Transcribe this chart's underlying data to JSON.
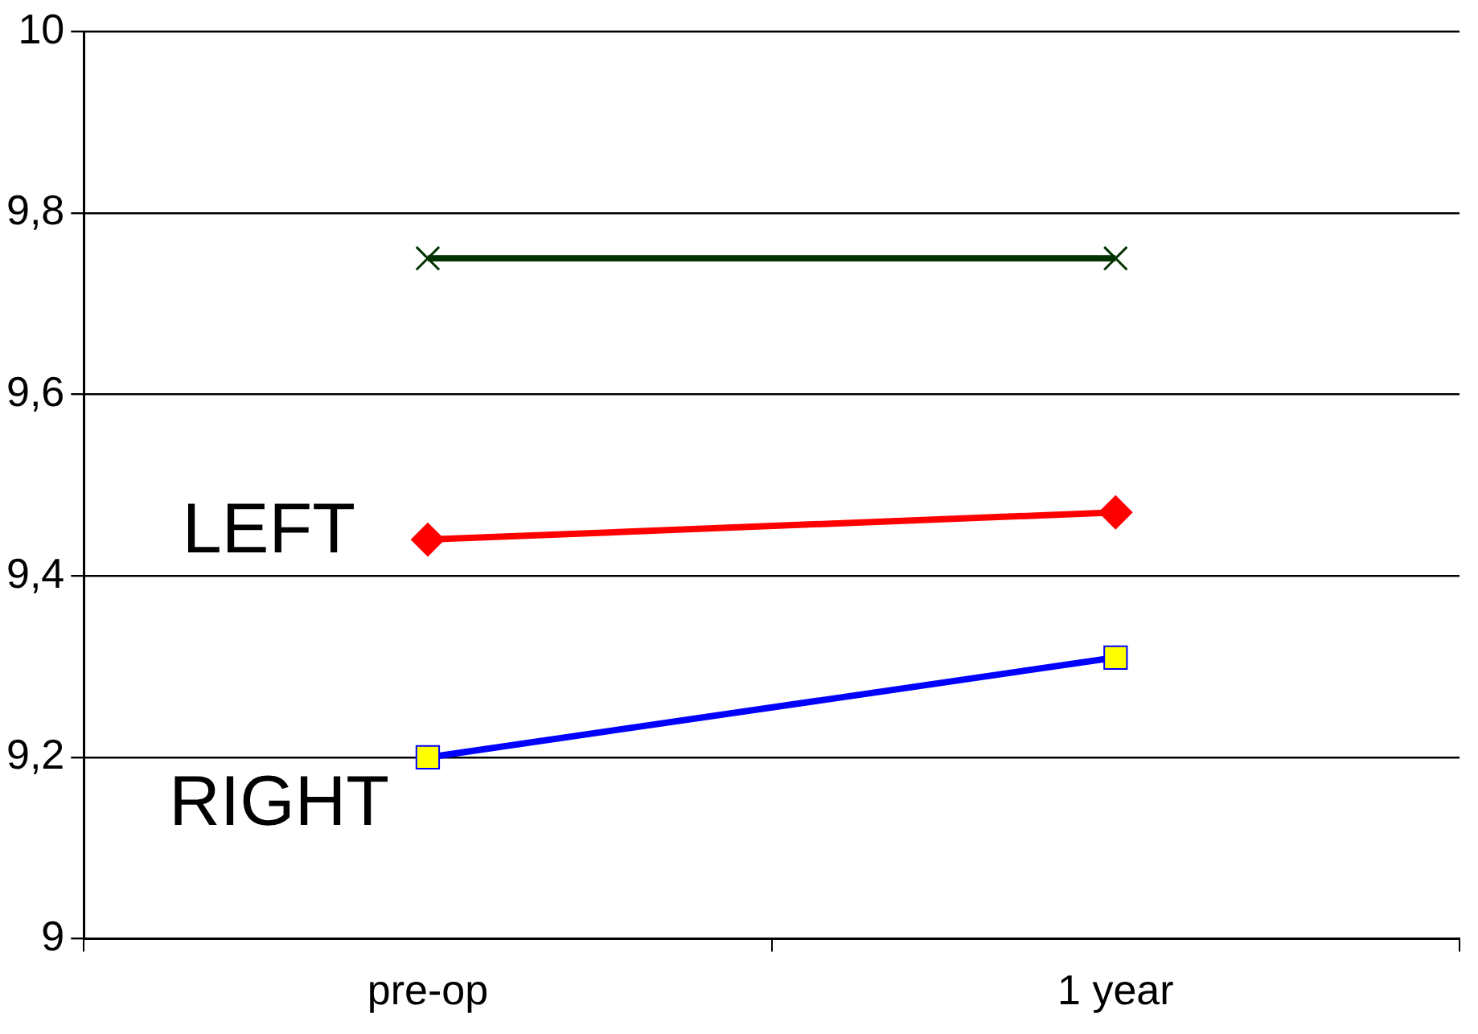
{
  "chart_data": {
    "type": "line",
    "categories": [
      "pre-op",
      "1 year"
    ],
    "series": [
      {
        "color": "#003300",
        "values": [
          9.75,
          9.75
        ],
        "marker": "cross"
      },
      {
        "name": "LEFT",
        "color": "#ff0000",
        "values": [
          9.44,
          9.47
        ],
        "marker": "diamond"
      },
      {
        "name": "RIGHT",
        "color": "#0000ff",
        "values": [
          9.2,
          9.31
        ],
        "marker": "square"
      }
    ],
    "ylim": [
      9,
      10
    ],
    "yticks": [
      9,
      {
        "value": 9.2,
        "label": "9,2"
      },
      {
        "value": 9.4,
        "label": "9,4"
      },
      {
        "value": 9.6,
        "label": "9,6"
      },
      {
        "value": 9.8,
        "label": "9,8"
      },
      10
    ],
    "grid": "y",
    "legend": false,
    "line_style": "solid"
  }
}
